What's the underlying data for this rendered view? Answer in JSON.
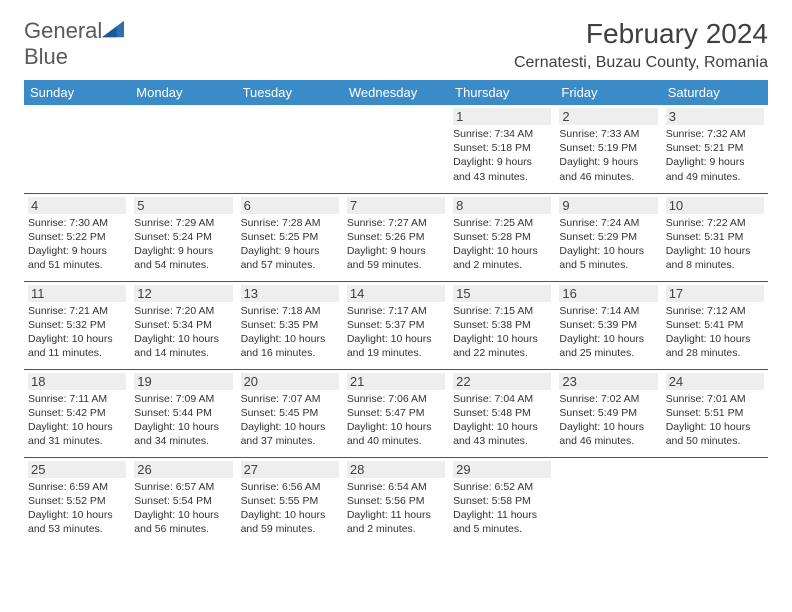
{
  "logo": {
    "text_a": "General",
    "text_b": "Blue"
  },
  "title": "February 2024",
  "location": "Cernatesti, Buzau County, Romania",
  "colors": {
    "header_bg": "#3b8bc8",
    "header_text": "#ffffff",
    "row_border": "#2a5d8f",
    "daynum_bg": "#eeeeee",
    "text": "#333333",
    "logo_gray": "#5a5a5a",
    "logo_blue": "#2f6fb0"
  },
  "typography": {
    "title_fontsize": 28,
    "location_fontsize": 16,
    "cell_fontsize": 10.5
  },
  "days_of_week": [
    "Sunday",
    "Monday",
    "Tuesday",
    "Wednesday",
    "Thursday",
    "Friday",
    "Saturday"
  ],
  "weeks": [
    [
      null,
      null,
      null,
      null,
      {
        "n": "1",
        "sunrise": "7:34 AM",
        "sunset": "5:18 PM",
        "daylight": "9 hours and 43 minutes."
      },
      {
        "n": "2",
        "sunrise": "7:33 AM",
        "sunset": "5:19 PM",
        "daylight": "9 hours and 46 minutes."
      },
      {
        "n": "3",
        "sunrise": "7:32 AM",
        "sunset": "5:21 PM",
        "daylight": "9 hours and 49 minutes."
      }
    ],
    [
      {
        "n": "4",
        "sunrise": "7:30 AM",
        "sunset": "5:22 PM",
        "daylight": "9 hours and 51 minutes."
      },
      {
        "n": "5",
        "sunrise": "7:29 AM",
        "sunset": "5:24 PM",
        "daylight": "9 hours and 54 minutes."
      },
      {
        "n": "6",
        "sunrise": "7:28 AM",
        "sunset": "5:25 PM",
        "daylight": "9 hours and 57 minutes."
      },
      {
        "n": "7",
        "sunrise": "7:27 AM",
        "sunset": "5:26 PM",
        "daylight": "9 hours and 59 minutes."
      },
      {
        "n": "8",
        "sunrise": "7:25 AM",
        "sunset": "5:28 PM",
        "daylight": "10 hours and 2 minutes."
      },
      {
        "n": "9",
        "sunrise": "7:24 AM",
        "sunset": "5:29 PM",
        "daylight": "10 hours and 5 minutes."
      },
      {
        "n": "10",
        "sunrise": "7:22 AM",
        "sunset": "5:31 PM",
        "daylight": "10 hours and 8 minutes."
      }
    ],
    [
      {
        "n": "11",
        "sunrise": "7:21 AM",
        "sunset": "5:32 PM",
        "daylight": "10 hours and 11 minutes."
      },
      {
        "n": "12",
        "sunrise": "7:20 AM",
        "sunset": "5:34 PM",
        "daylight": "10 hours and 14 minutes."
      },
      {
        "n": "13",
        "sunrise": "7:18 AM",
        "sunset": "5:35 PM",
        "daylight": "10 hours and 16 minutes."
      },
      {
        "n": "14",
        "sunrise": "7:17 AM",
        "sunset": "5:37 PM",
        "daylight": "10 hours and 19 minutes."
      },
      {
        "n": "15",
        "sunrise": "7:15 AM",
        "sunset": "5:38 PM",
        "daylight": "10 hours and 22 minutes."
      },
      {
        "n": "16",
        "sunrise": "7:14 AM",
        "sunset": "5:39 PM",
        "daylight": "10 hours and 25 minutes."
      },
      {
        "n": "17",
        "sunrise": "7:12 AM",
        "sunset": "5:41 PM",
        "daylight": "10 hours and 28 minutes."
      }
    ],
    [
      {
        "n": "18",
        "sunrise": "7:11 AM",
        "sunset": "5:42 PM",
        "daylight": "10 hours and 31 minutes."
      },
      {
        "n": "19",
        "sunrise": "7:09 AM",
        "sunset": "5:44 PM",
        "daylight": "10 hours and 34 minutes."
      },
      {
        "n": "20",
        "sunrise": "7:07 AM",
        "sunset": "5:45 PM",
        "daylight": "10 hours and 37 minutes."
      },
      {
        "n": "21",
        "sunrise": "7:06 AM",
        "sunset": "5:47 PM",
        "daylight": "10 hours and 40 minutes."
      },
      {
        "n": "22",
        "sunrise": "7:04 AM",
        "sunset": "5:48 PM",
        "daylight": "10 hours and 43 minutes."
      },
      {
        "n": "23",
        "sunrise": "7:02 AM",
        "sunset": "5:49 PM",
        "daylight": "10 hours and 46 minutes."
      },
      {
        "n": "24",
        "sunrise": "7:01 AM",
        "sunset": "5:51 PM",
        "daylight": "10 hours and 50 minutes."
      }
    ],
    [
      {
        "n": "25",
        "sunrise": "6:59 AM",
        "sunset": "5:52 PM",
        "daylight": "10 hours and 53 minutes."
      },
      {
        "n": "26",
        "sunrise": "6:57 AM",
        "sunset": "5:54 PM",
        "daylight": "10 hours and 56 minutes."
      },
      {
        "n": "27",
        "sunrise": "6:56 AM",
        "sunset": "5:55 PM",
        "daylight": "10 hours and 59 minutes."
      },
      {
        "n": "28",
        "sunrise": "6:54 AM",
        "sunset": "5:56 PM",
        "daylight": "11 hours and 2 minutes."
      },
      {
        "n": "29",
        "sunrise": "6:52 AM",
        "sunset": "5:58 PM",
        "daylight": "11 hours and 5 minutes."
      },
      null,
      null
    ]
  ],
  "labels": {
    "sunrise": "Sunrise: ",
    "sunset": "Sunset: ",
    "daylight": "Daylight: "
  }
}
